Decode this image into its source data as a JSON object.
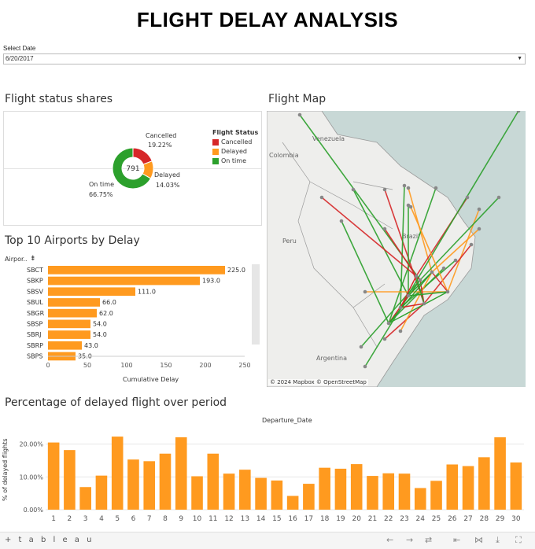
{
  "header": {
    "title": "FLIGHT DELAY ANALYSIS"
  },
  "filter": {
    "label": "Select Date",
    "value": "6/20/2017"
  },
  "status": {
    "title": "Flight status shares",
    "total": "791",
    "legend_title": "Flight Status",
    "items": [
      {
        "name": "Cancelled",
        "pct": "19.22%",
        "share": 19.22,
        "color": "#d62728"
      },
      {
        "name": "Delayed",
        "pct": "14.03%",
        "share": 14.03,
        "color": "#ff9a1f"
      },
      {
        "name": "On time",
        "pct": "66.75%",
        "share": 66.75,
        "color": "#2ca02c"
      }
    ]
  },
  "top10": {
    "title": "Top 10 Airports by Delay",
    "col_header": "Airpor..",
    "axis_label": "Cumulative Delay",
    "color": "#ff9a1f",
    "xlim": [
      0,
      250
    ],
    "ticks": [
      "0",
      "50",
      "100",
      "150",
      "200",
      "250"
    ],
    "rows": [
      {
        "code": "SBCT",
        "value": 225.0,
        "label": "225.0"
      },
      {
        "code": "SBKP",
        "value": 193.0,
        "label": "193.0"
      },
      {
        "code": "SBSV",
        "value": 111.0,
        "label": "111.0"
      },
      {
        "code": "SBUL",
        "value": 66.0,
        "label": "66.0"
      },
      {
        "code": "SBGR",
        "value": 62.0,
        "label": "62.0"
      },
      {
        "code": "SBSP",
        "value": 54.0,
        "label": "54.0"
      },
      {
        "code": "SBRJ",
        "value": 54.0,
        "label": "54.0"
      },
      {
        "code": "SBRP",
        "value": 43.0,
        "label": "43.0"
      },
      {
        "code": "SBPS",
        "value": 35.0,
        "label": "35.0"
      }
    ]
  },
  "map": {
    "title": "Flight Map",
    "attribution": "© 2024 Mapbox © OpenStreetMap",
    "labels": [
      {
        "text": "Venezuela"
      },
      {
        "text": "Colombia"
      },
      {
        "text": "Peru"
      },
      {
        "text": "Brazil"
      },
      {
        "text": "Argentina"
      }
    ]
  },
  "chart_data": {
    "type": "bar",
    "title": "Percentage of delayed flight over period",
    "xlabel": "Departure_Date",
    "ylabel": "% of delayed flights",
    "ylim": [
      0,
      24
    ],
    "yticks": [
      "0.00%",
      "10.00%",
      "20.00%"
    ],
    "categories": [
      "1",
      "2",
      "3",
      "4",
      "5",
      "6",
      "7",
      "8",
      "9",
      "10",
      "11",
      "12",
      "13",
      "14",
      "15",
      "16",
      "17",
      "18",
      "19",
      "20",
      "21",
      "22",
      "23",
      "24",
      "25",
      "26",
      "27",
      "28",
      "29",
      "30"
    ],
    "values": [
      20.5,
      18.2,
      6.9,
      10.4,
      22.3,
      15.3,
      14.8,
      17.1,
      22.1,
      10.2,
      17.1,
      11.0,
      12.2,
      9.7,
      8.9,
      4.2,
      7.9,
      12.8,
      12.5,
      13.9,
      10.3,
      11.1,
      11.0,
      6.6,
      8.8,
      13.8,
      13.3,
      16.0,
      22.1,
      14.4
    ],
    "color": "#ff9a1f",
    "grid": true
  },
  "footer": {
    "logo": "+ t a b l e a u"
  }
}
